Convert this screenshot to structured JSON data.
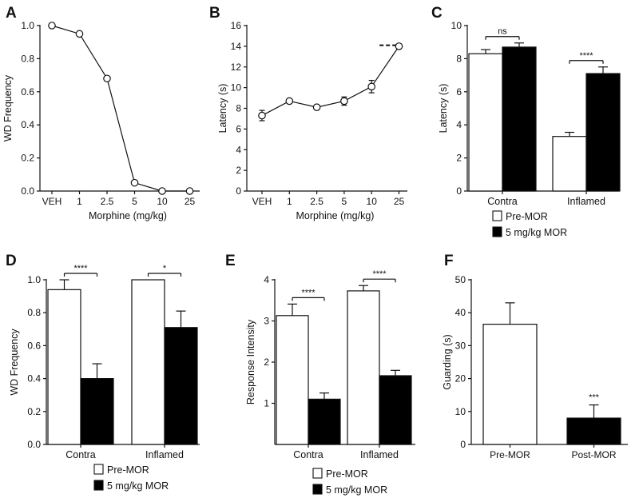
{
  "chart_data": [
    {
      "panel": "A",
      "type": "line",
      "categories": [
        "VEH",
        "1",
        "2.5",
        "5",
        "10",
        "25"
      ],
      "values": [
        1.0,
        0.95,
        0.68,
        0.05,
        0.0,
        0.0
      ],
      "xlabel": "Morphine (mg/kg)",
      "ylabel": "WD Frequency",
      "ylim": [
        0,
        1.0
      ],
      "yticks": [
        "0.0",
        "0.2",
        "0.4",
        "0.6",
        "0.8",
        "1.0"
      ]
    },
    {
      "panel": "B",
      "type": "line",
      "categories": [
        "VEH",
        "1",
        "2.5",
        "5",
        "10",
        "25"
      ],
      "values": [
        7.3,
        8.7,
        8.1,
        8.7,
        10.1,
        14.0
      ],
      "errors": [
        0.5,
        0.15,
        0.2,
        0.4,
        0.6,
        0.1
      ],
      "cutoff": 14.1,
      "xlabel": "Morphine (mg/kg)",
      "ylabel": "Latency (s)",
      "ylim": [
        0,
        16
      ],
      "yticks": [
        "0",
        "2",
        "4",
        "6",
        "8",
        "10",
        "12",
        "14",
        "16"
      ]
    },
    {
      "panel": "C",
      "type": "bar",
      "categories": [
        "Contra",
        "Inflamed"
      ],
      "series": [
        {
          "name": "Pre-MOR",
          "values": [
            8.3,
            3.3
          ],
          "errors": [
            0.25,
            0.25
          ]
        },
        {
          "name": "5 mg/kg MOR",
          "values": [
            8.7,
            7.1
          ],
          "errors": [
            0.25,
            0.4
          ]
        }
      ],
      "significance": [
        "ns",
        "****"
      ],
      "ylabel": "Latency (s)",
      "ylim": [
        0,
        10
      ],
      "yticks": [
        "0",
        "2",
        "4",
        "6",
        "8",
        "10"
      ]
    },
    {
      "panel": "D",
      "type": "bar",
      "categories": [
        "Contra",
        "Inflamed"
      ],
      "series": [
        {
          "name": "Pre-MOR",
          "values": [
            0.94,
            1.0
          ],
          "errors": [
            0.06,
            0.0
          ]
        },
        {
          "name": "5 mg/kg MOR",
          "values": [
            0.4,
            0.71
          ],
          "errors": [
            0.09,
            0.1
          ]
        }
      ],
      "significance": [
        "****",
        "*"
      ],
      "ylabel": "WD Frequency",
      "ylim": [
        0,
        1.0
      ],
      "yticks": [
        "0.0",
        "0.2",
        "0.4",
        "0.6",
        "0.8",
        "1.0"
      ]
    },
    {
      "panel": "E",
      "type": "bar",
      "categories": [
        "Contra",
        "Inflamed"
      ],
      "series": [
        {
          "name": "Pre-MOR",
          "values": [
            3.13,
            3.73
          ],
          "errors": [
            0.28,
            0.13
          ]
        },
        {
          "name": "5 mg/kg MOR",
          "values": [
            1.1,
            1.67
          ],
          "errors": [
            0.15,
            0.13
          ]
        }
      ],
      "significance": [
        "****",
        "****"
      ],
      "ylabel": "Response Intensity",
      "ylim": [
        0,
        4
      ],
      "yticks": [
        "1",
        "2",
        "3",
        "4"
      ]
    },
    {
      "panel": "F",
      "type": "bar",
      "categories": [
        "Pre-MOR",
        "Post-MOR"
      ],
      "values": [
        36.5,
        8.0
      ],
      "errors": [
        6.5,
        4.0
      ],
      "colors": [
        "#ffffff",
        "#000000"
      ],
      "significance": [
        "",
        "***"
      ],
      "ylabel": "Guarding (s)",
      "ylim": [
        0,
        50
      ],
      "yticks": [
        "0",
        "10",
        "20",
        "30",
        "40",
        "50"
      ]
    }
  ]
}
